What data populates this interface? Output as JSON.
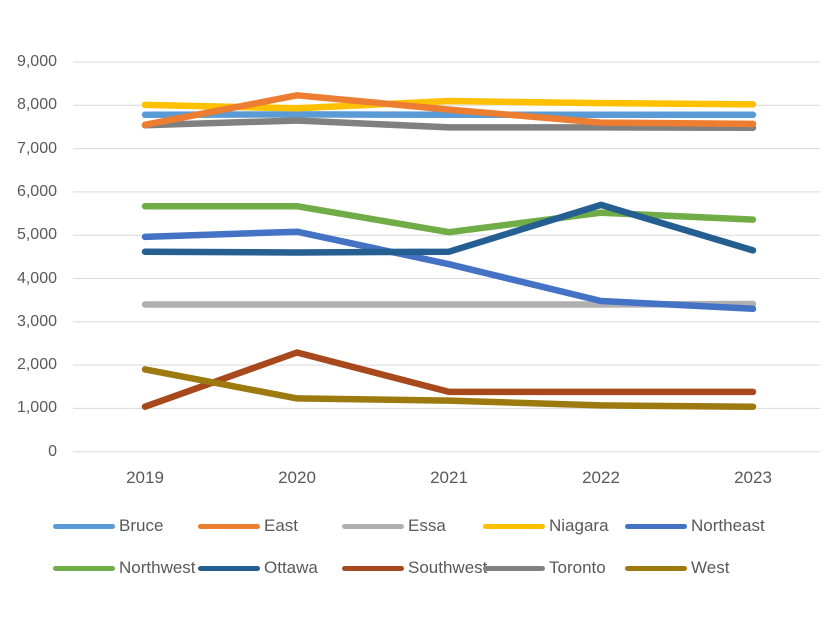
{
  "colors": {
    "text": "#595959",
    "gridline": "#D9D9D9",
    "background": "#FFFFFF"
  },
  "chart_data": {
    "type": "line",
    "title": "",
    "x": [
      "2019",
      "2020",
      "2021",
      "2022",
      "2023"
    ],
    "xlabel": "",
    "ylabel": "",
    "ylim": [
      0,
      9000
    ],
    "grid": true,
    "legend_position": "bottom",
    "y_ticks": [
      "0",
      "1,000",
      "2,000",
      "3,000",
      "4,000",
      "5,000",
      "6,000",
      "7,000",
      "8,000",
      "9,000"
    ],
    "y_tick_values": [
      0,
      1000,
      2000,
      3000,
      4000,
      5000,
      6000,
      7000,
      8000,
      9000
    ],
    "series": [
      {
        "name": "Bruce",
        "color": "#5B9BD5",
        "values": [
          7780,
          7790,
          7780,
          7780,
          7780
        ]
      },
      {
        "name": "East",
        "color": "#ED7D31",
        "values": [
          7550,
          8230,
          7900,
          7600,
          7570
        ]
      },
      {
        "name": "Essa",
        "color": "#B0B0B0",
        "values": [
          3400,
          3400,
          3400,
          3400,
          3410
        ]
      },
      {
        "name": "Niagara",
        "color": "#FFC000",
        "values": [
          8010,
          7930,
          8100,
          8050,
          8020
        ]
      },
      {
        "name": "Northeast",
        "color": "#4472C4",
        "values": [
          4960,
          5080,
          4330,
          3480,
          3300
        ]
      },
      {
        "name": "Northwest",
        "color": "#70AD47",
        "values": [
          5670,
          5670,
          5070,
          5520,
          5360
        ]
      },
      {
        "name": "Ottawa",
        "color": "#255E91",
        "values": [
          4620,
          4600,
          4620,
          5700,
          4650
        ]
      },
      {
        "name": "Southwest",
        "color": "#A8491D",
        "values": [
          1040,
          2290,
          1380,
          1380,
          1380
        ]
      },
      {
        "name": "Toronto",
        "color": "#808080",
        "values": [
          7540,
          7650,
          7490,
          7490,
          7480
        ]
      },
      {
        "name": "West",
        "color": "#9C7A10",
        "values": [
          1900,
          1230,
          1180,
          1070,
          1040
        ]
      }
    ],
    "draw_order": [
      "Essa",
      "Bruce",
      "Niagara",
      "Toronto",
      "Northeast",
      "Northwest",
      "Ottawa",
      "Southwest",
      "West",
      "East"
    ],
    "legend_rows": [
      [
        "Bruce",
        "East",
        "Essa",
        "Niagara",
        "Northeast"
      ],
      [
        "Northwest",
        "Ottawa",
        "Southwest",
        "Toronto",
        "West"
      ]
    ]
  }
}
